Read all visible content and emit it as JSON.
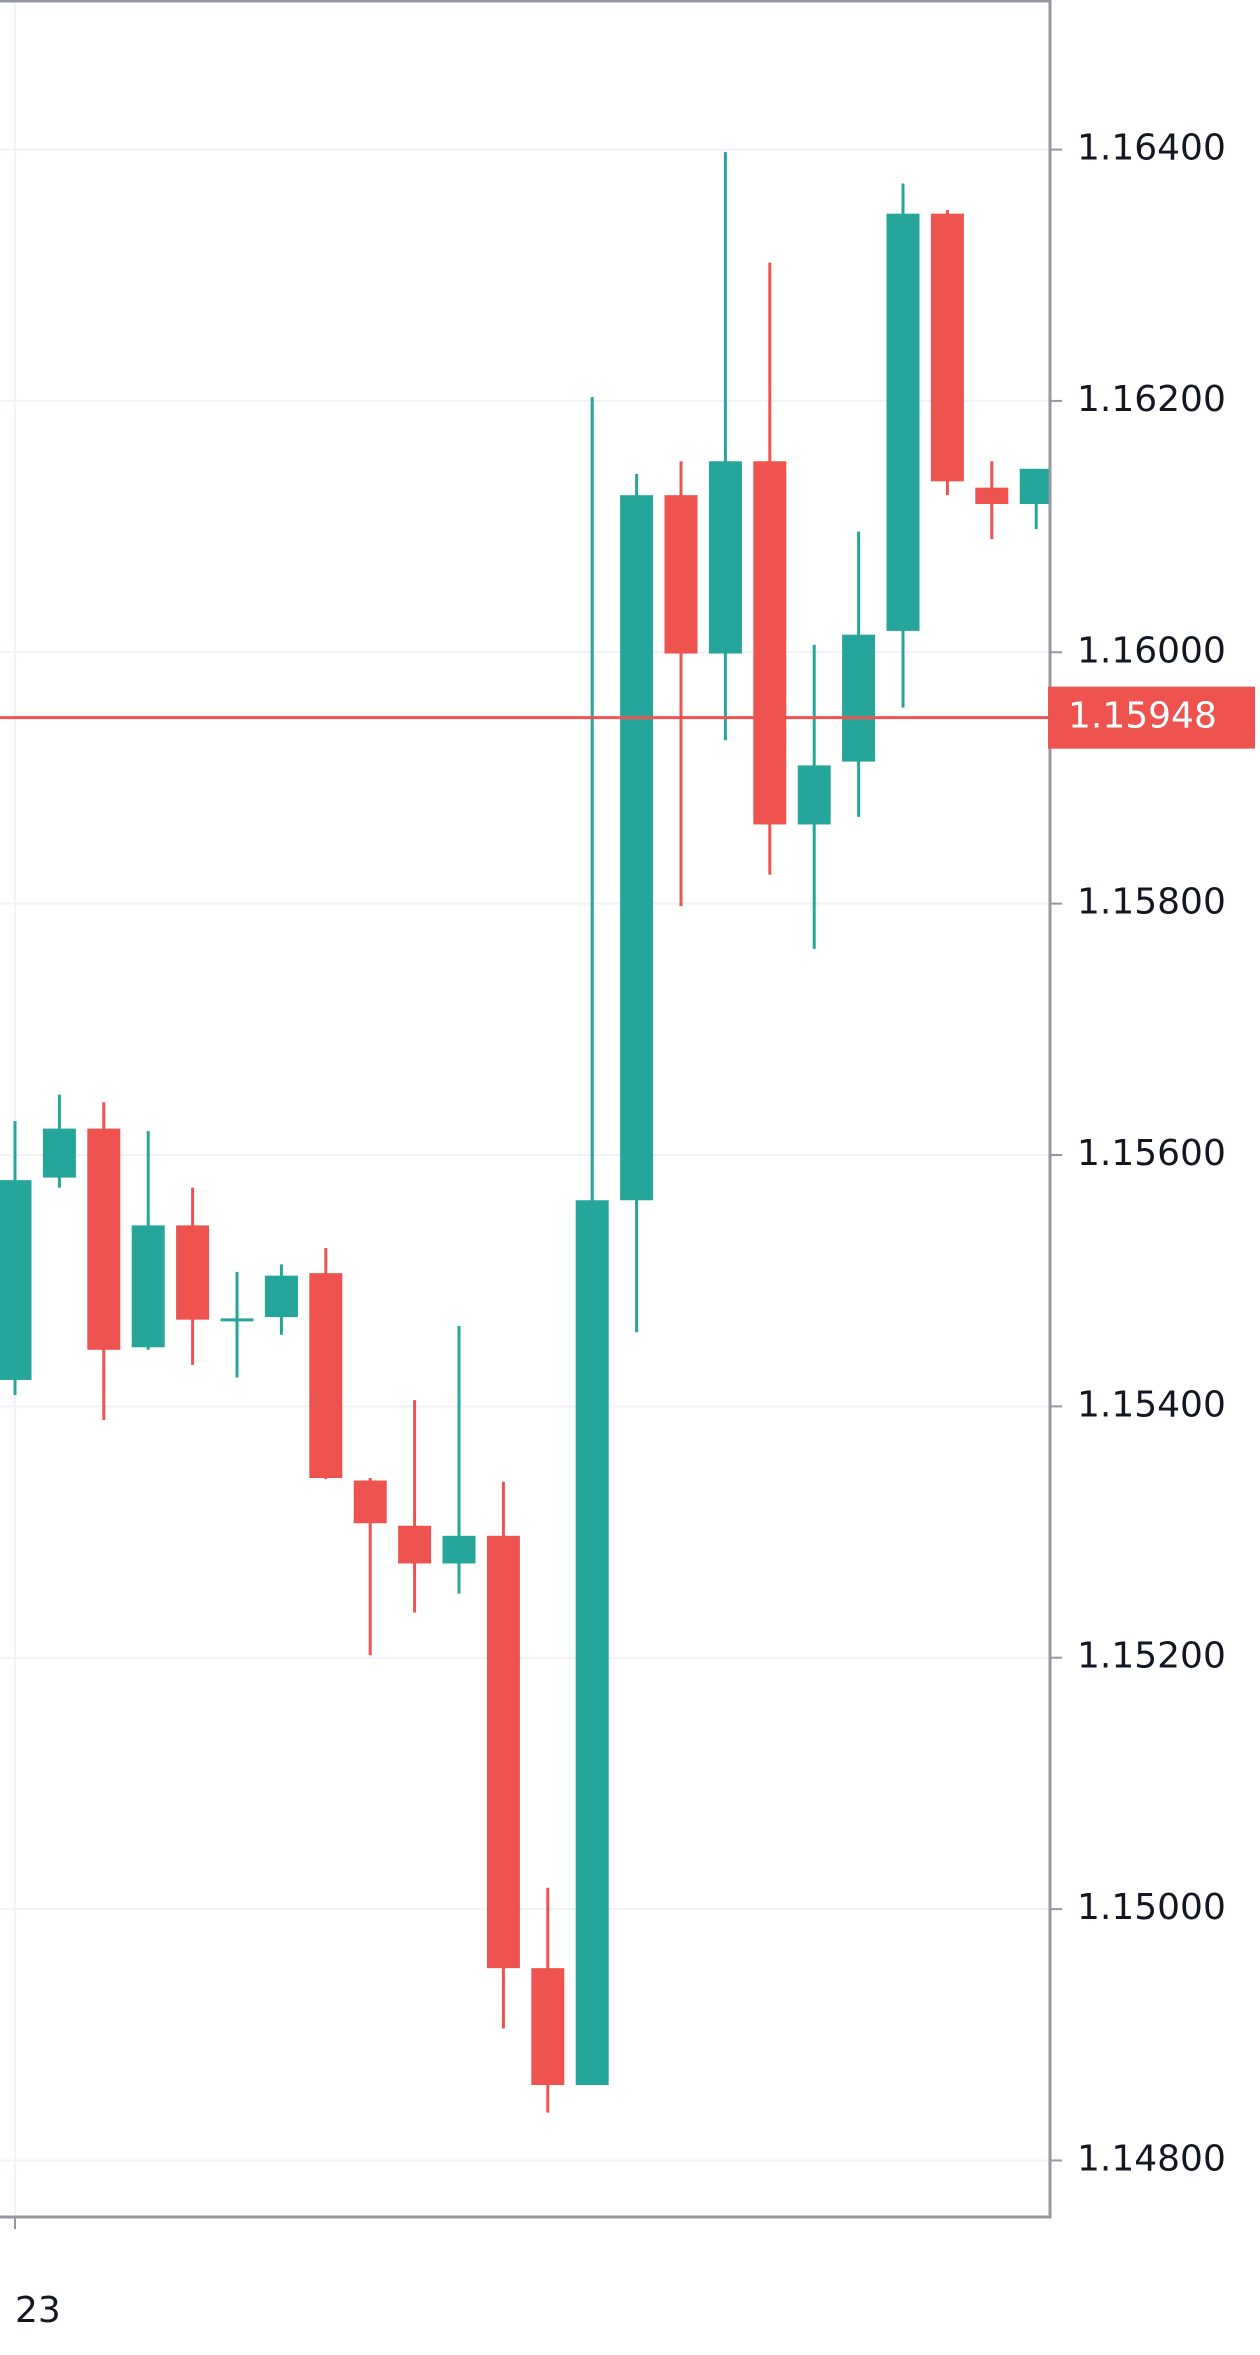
{
  "chart_data": {
    "type": "candlestick",
    "categories": [
      "23",
      null,
      null,
      null,
      null,
      null,
      null,
      null,
      null,
      null,
      null,
      null,
      null,
      null,
      null,
      null,
      null,
      null,
      null,
      null,
      null,
      null,
      null,
      null
    ],
    "open": [
      1.15421,
      1.15582,
      1.15621,
      1.15447,
      1.15544,
      1.15468,
      1.15471,
      1.15506,
      1.15341,
      1.15305,
      1.15275,
      1.15297,
      1.14953,
      1.1486,
      1.15564,
      1.16125,
      1.15999,
      1.16152,
      1.15863,
      1.15913,
      1.16017,
      1.16349,
      1.16131,
      1.16118
    ],
    "high": [
      1.15627,
      1.15648,
      1.15642,
      1.15619,
      1.15574,
      1.15507,
      1.15513,
      1.15526,
      1.15343,
      1.15405,
      1.15464,
      1.1534,
      1.15017,
      1.16203,
      1.16142,
      1.16152,
      1.16398,
      1.1631,
      1.16006,
      1.16096,
      1.16373,
      1.16352,
      1.16152,
      1.16146
    ],
    "low": [
      1.15409,
      1.15574,
      1.15389,
      1.15445,
      1.15433,
      1.15423,
      1.15457,
      1.15342,
      1.15202,
      1.15236,
      1.15251,
      1.14905,
      1.14838,
      1.1486,
      1.15459,
      1.15798,
      1.1593,
      1.15823,
      1.15764,
      1.15869,
      1.15956,
      1.16125,
      1.1609,
      1.16098
    ],
    "close": [
      1.1558,
      1.15621,
      1.15445,
      1.15544,
      1.15469,
      1.1547,
      1.15504,
      1.15343,
      1.15307,
      1.15275,
      1.15297,
      1.14953,
      1.1486,
      1.15564,
      1.16125,
      1.15999,
      1.16152,
      1.15863,
      1.1591,
      1.16014,
      1.16349,
      1.16136,
      1.16118,
      1.16146
    ],
    "up_color": "#26a69a",
    "down_color": "#ef5350",
    "last_price": 1.15948,
    "last_price_color": "#ef5350",
    "ylim": [
      1.14755,
      1.16519
    ],
    "yticks": [
      {
        "value": 1.148,
        "label": "1.14800"
      },
      {
        "value": 1.15,
        "label": "1.15000"
      },
      {
        "value": 1.152,
        "label": "1.15200"
      },
      {
        "value": 1.154,
        "label": "1.15400"
      },
      {
        "value": 1.156,
        "label": "1.15600"
      },
      {
        "value": 1.158,
        "label": "1.15800"
      },
      {
        "value": 1.16,
        "label": "1.16000"
      },
      {
        "value": 1.162,
        "label": "1.16200"
      },
      {
        "value": 1.164,
        "label": "1.16400"
      }
    ],
    "grid": true
  }
}
